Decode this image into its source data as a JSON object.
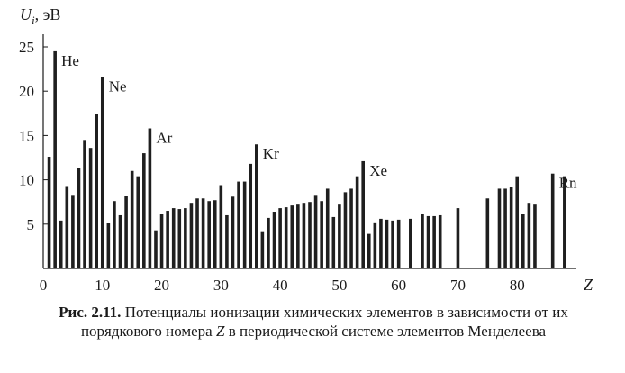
{
  "chart_data": {
    "type": "bar",
    "ylabel_symbol": "U",
    "ylabel_subscript": "i",
    "ylabel_unit": ", эВ",
    "xlabel": "Z",
    "xlim": [
      0,
      90
    ],
    "ylim": [
      0,
      25
    ],
    "x_ticks": [
      "0",
      "10",
      "20",
      "30",
      "40",
      "50",
      "60",
      "70",
      "80"
    ],
    "x_tick_values": [
      0,
      10,
      20,
      30,
      40,
      50,
      60,
      70,
      80
    ],
    "y_ticks": [
      "5",
      "10",
      "15",
      "20",
      "25"
    ],
    "y_tick_values": [
      5,
      10,
      15,
      20,
      25
    ],
    "z": [
      1,
      2,
      3,
      4,
      5,
      6,
      7,
      8,
      9,
      10,
      11,
      12,
      13,
      14,
      15,
      16,
      17,
      18,
      19,
      20,
      21,
      22,
      23,
      24,
      25,
      26,
      27,
      28,
      29,
      30,
      31,
      32,
      33,
      34,
      35,
      36,
      37,
      38,
      39,
      40,
      41,
      42,
      43,
      44,
      45,
      46,
      47,
      48,
      49,
      50,
      51,
      52,
      53,
      54,
      55,
      56,
      57,
      58,
      59,
      60,
      62,
      64,
      65,
      66,
      67,
      70,
      75,
      77,
      78,
      79,
      80,
      81,
      82,
      83,
      86,
      88
    ],
    "values": [
      12.6,
      24.5,
      5.4,
      9.3,
      8.3,
      11.3,
      14.5,
      13.6,
      17.4,
      21.6,
      5.1,
      7.6,
      6.0,
      8.2,
      11.0,
      10.4,
      13.0,
      15.8,
      4.3,
      6.1,
      6.5,
      6.8,
      6.7,
      6.8,
      7.4,
      7.9,
      7.9,
      7.6,
      7.7,
      9.4,
      6.0,
      8.1,
      9.8,
      9.8,
      11.8,
      14.0,
      4.2,
      5.7,
      6.4,
      6.8,
      6.9,
      7.1,
      7.3,
      7.4,
      7.5,
      8.3,
      7.6,
      9.0,
      5.8,
      7.3,
      8.6,
      9.0,
      10.4,
      12.1,
      3.9,
      5.2,
      5.6,
      5.5,
      5.4,
      5.5,
      5.6,
      6.2,
      5.9,
      5.9,
      6.0,
      6.8,
      7.9,
      9.0,
      9.0,
      9.2,
      10.4,
      6.1,
      7.4,
      7.3,
      10.7,
      10.4
    ],
    "element_labels": [
      {
        "text": "He",
        "z": 2,
        "u": 24.5
      },
      {
        "text": "Ne",
        "z": 10,
        "u": 21.6
      },
      {
        "text": "Ar",
        "z": 18,
        "u": 15.8
      },
      {
        "text": "Kr",
        "z": 36,
        "u": 14.0
      },
      {
        "text": "Xe",
        "z": 54,
        "u": 12.1
      },
      {
        "text": "Rn",
        "z": 86,
        "u": 10.7
      }
    ]
  },
  "caption": {
    "label": "Рис. 2.11.",
    "text_before_z": " Потенциалы ионизации химических элементов в зависимости от их порядкового номера ",
    "z_symbol": "Z",
    "text_after_z": " в периодической системе элементов Менделеева"
  }
}
